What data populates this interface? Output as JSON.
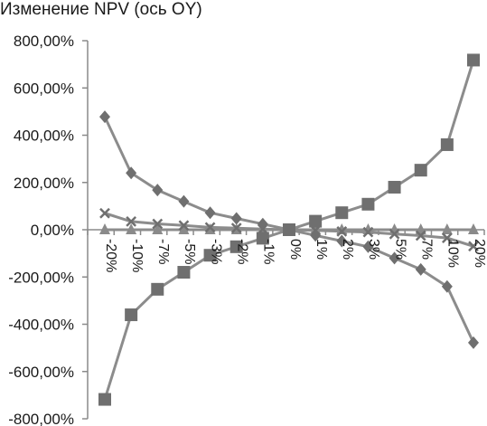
{
  "chart_data": {
    "type": "line",
    "title": "Изменение NPV (ось OY)",
    "xlabel": "",
    "ylabel": "",
    "categories": [
      "-20%",
      "-10%",
      "-7%",
      "-5%",
      "-3%",
      "-2%",
      "-1%",
      "0%",
      "1%",
      "2%",
      "3%",
      "5%",
      "7%",
      "10%",
      "20%"
    ],
    "ylim": [
      -800,
      800
    ],
    "yticks": [
      -800,
      -600,
      -400,
      -200,
      0,
      200,
      400,
      600,
      800
    ],
    "ytick_labels": [
      "-800,00%",
      "-600,00%",
      "-400,00%",
      "-200,00%",
      "0,00%",
      "200,00%",
      "400,00%",
      "600,00%",
      "800,00%"
    ],
    "grid": false,
    "legend": "none",
    "series": [
      {
        "marker": "diamond",
        "values": [
          478,
          240,
          168,
          120,
          72,
          48,
          24,
          0,
          -24,
          -48,
          -72,
          -120,
          -168,
          -240,
          -478
        ]
      },
      {
        "marker": "square",
        "values": [
          -718,
          -360,
          -252,
          -180,
          -108,
          -72,
          -36,
          0,
          36,
          72,
          108,
          180,
          252,
          360,
          718
        ]
      },
      {
        "marker": "triangle",
        "values": [
          0,
          0,
          0,
          0,
          0,
          0,
          0,
          0,
          0,
          0,
          0,
          0,
          0,
          0,
          0
        ]
      },
      {
        "marker": "x",
        "values": [
          70,
          35,
          25,
          18,
          10,
          7,
          3,
          0,
          -3,
          -7,
          -10,
          -18,
          -25,
          -35,
          -70
        ]
      }
    ],
    "colors": {
      "line": "#8c8c8c",
      "marker": "#6f6f6f",
      "axis": "#8a8a8a"
    }
  }
}
